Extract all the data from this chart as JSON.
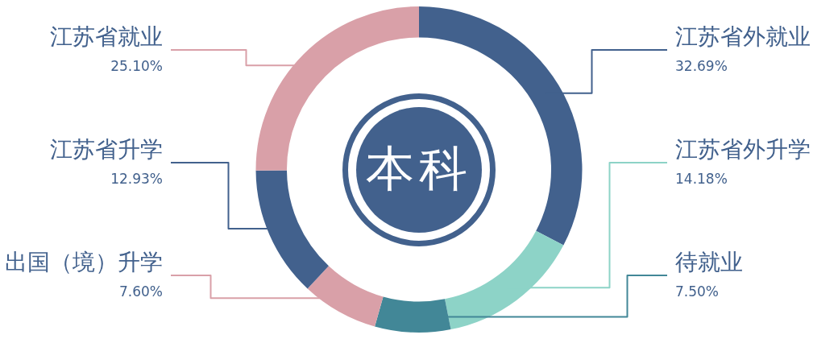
{
  "chart_data": {
    "type": "donut",
    "annotations": [
      "本科"
    ],
    "categories": [
      "江苏省外就业",
      "江苏省外升学",
      "待就业",
      "出国（境）升学",
      "江苏省升学",
      "江苏省就业"
    ],
    "values": [
      32.69,
      14.18,
      7.5,
      7.6,
      12.93,
      25.1
    ],
    "value_labels": [
      "32.69%",
      "14.18%",
      "7.50%",
      "7.60%",
      "12.93%",
      "25.10%"
    ],
    "colors": [
      "#42618d",
      "#8dd3c7",
      "#428797",
      "#d9a0a8",
      "#42618d",
      "#d9a0a8"
    ],
    "legend": false
  }
}
